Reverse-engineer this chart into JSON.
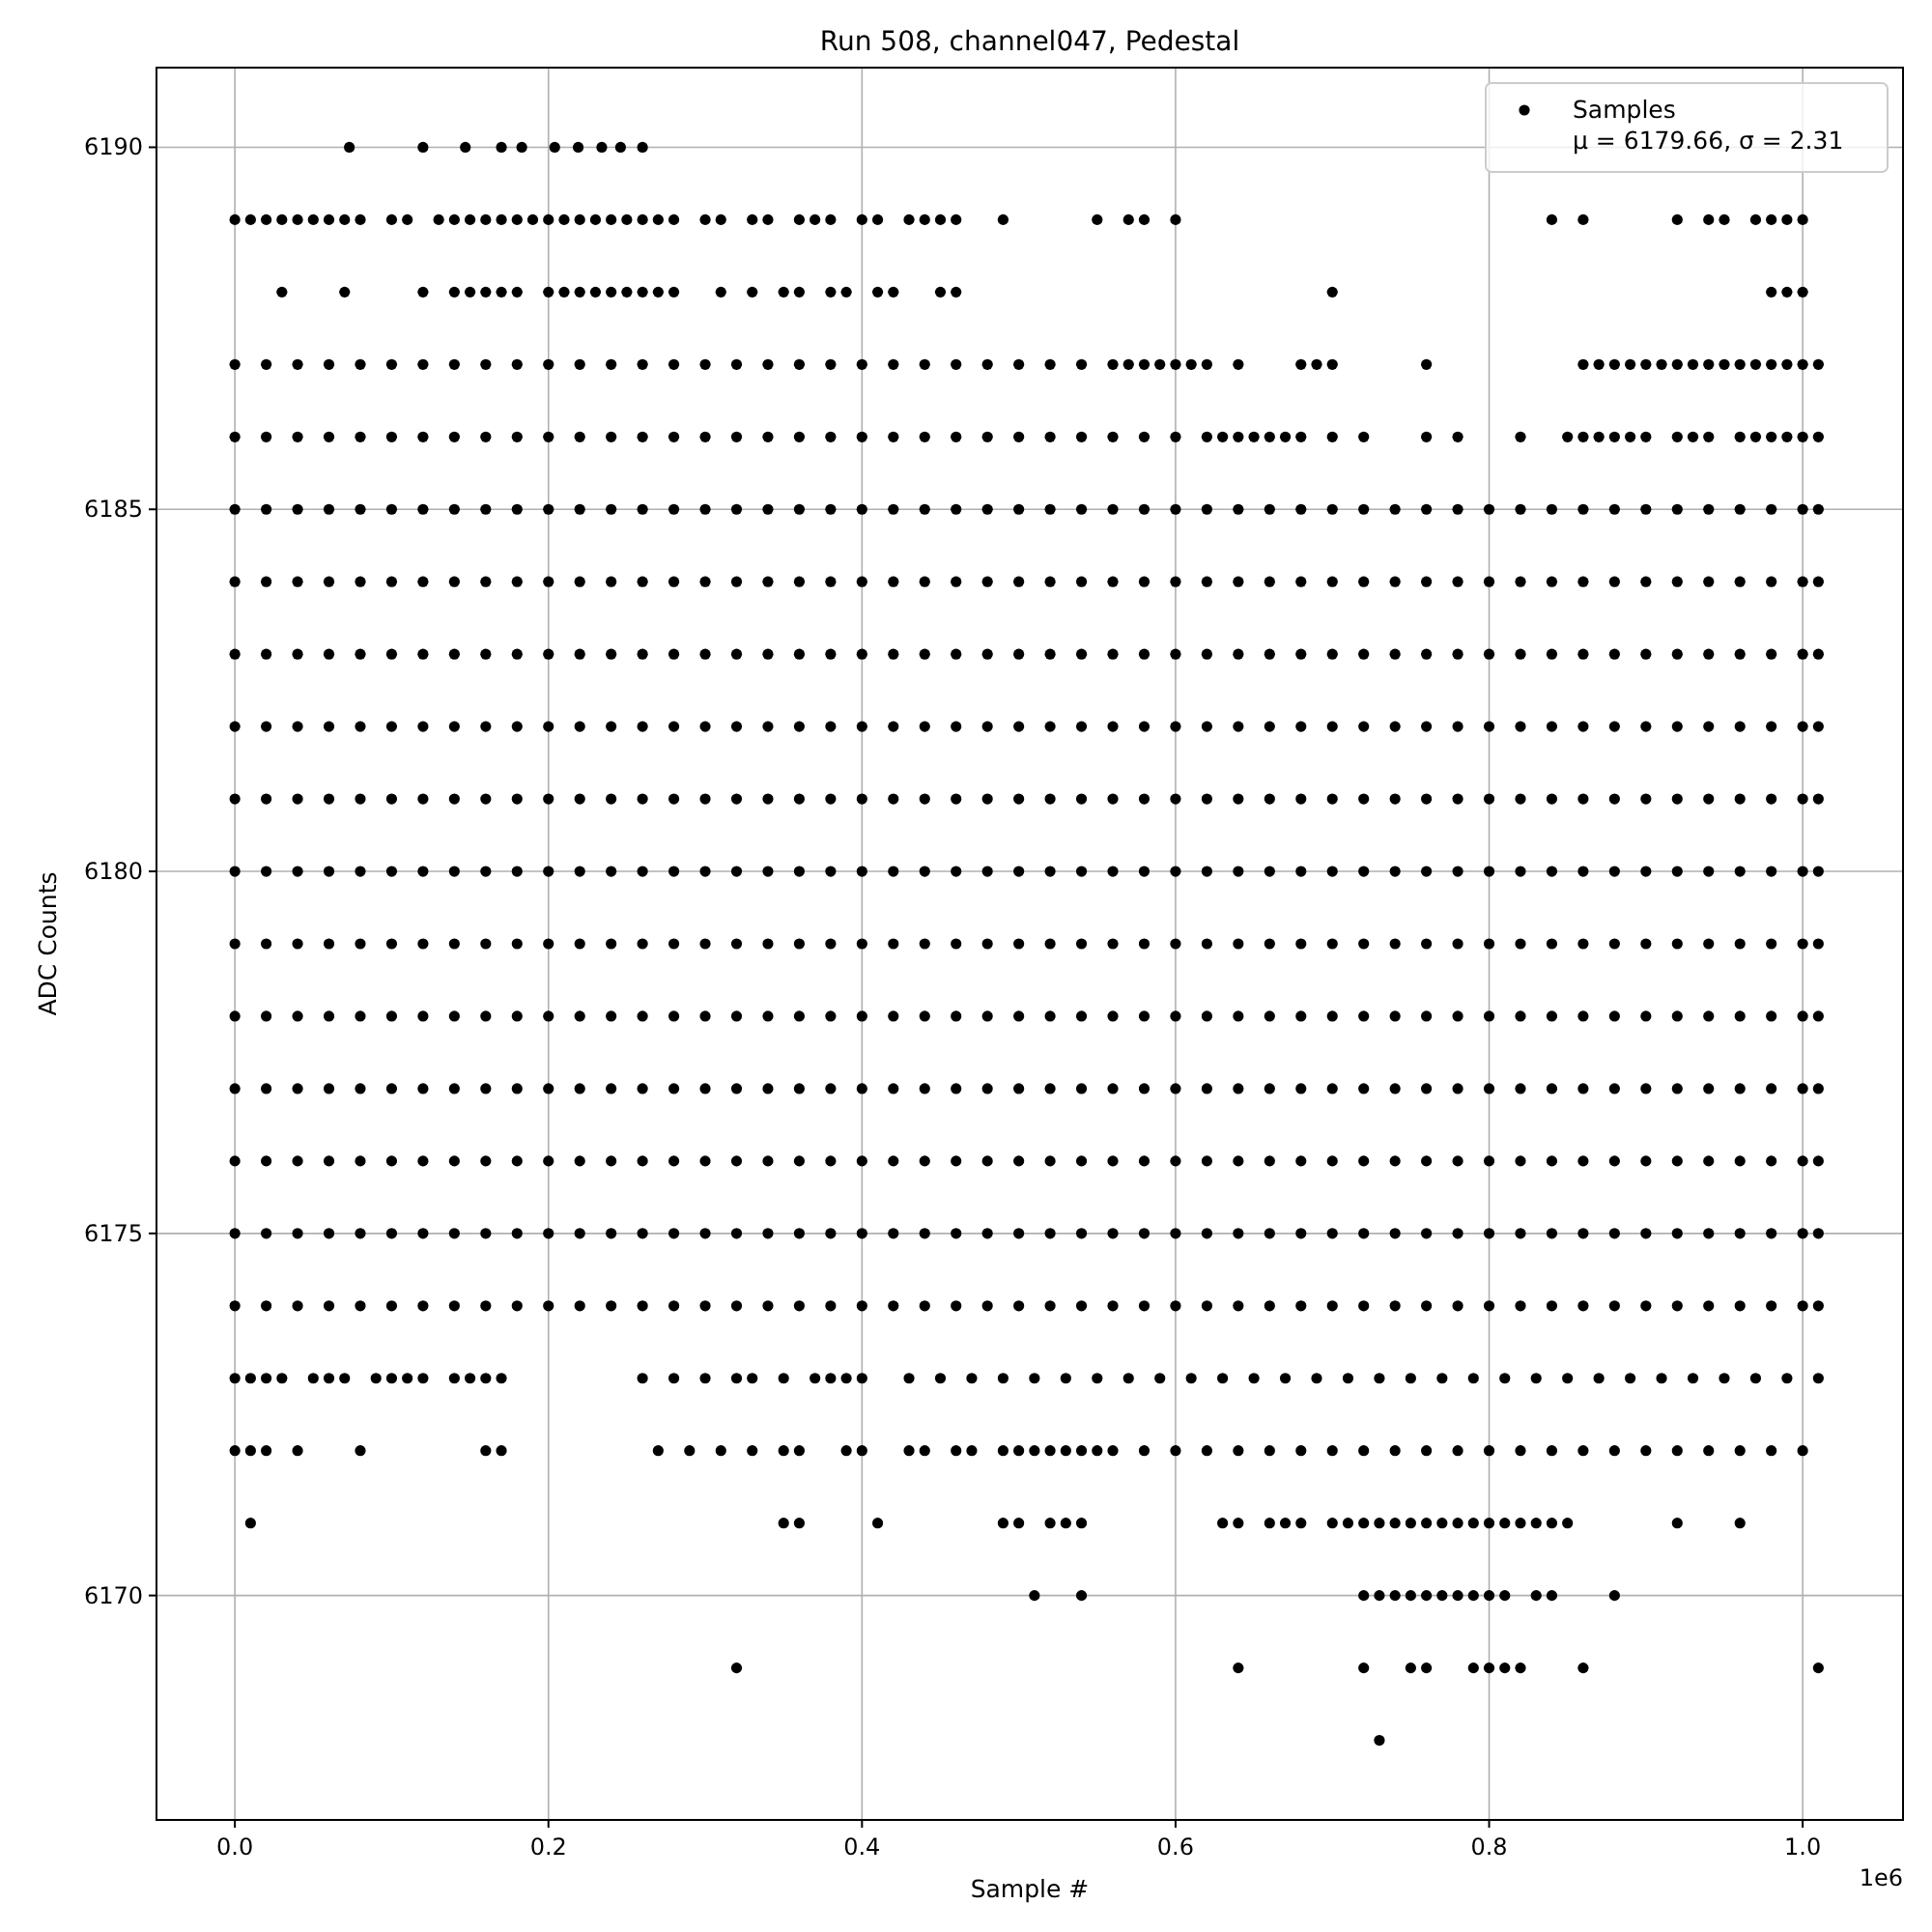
{
  "chart_data": {
    "type": "scatter",
    "title": "Run 508, channel047, Pedestal",
    "xlabel": "Sample #",
    "ylabel": "ADC Counts",
    "annotations": [
      "1e6"
    ],
    "xlim": [
      -0.05,
      1.064
    ],
    "ylim": [
      6166.9,
      6191.1
    ],
    "xticks": [
      {
        "value": 0,
        "label": "0.0"
      },
      {
        "value": 0.2,
        "label": "0.2"
      },
      {
        "value": 0.4,
        "label": "0.4"
      },
      {
        "value": 0.6,
        "label": "0.6"
      },
      {
        "value": 0.8,
        "label": "0.8"
      },
      {
        "value": 1,
        "label": "1.0"
      }
    ],
    "yticks": [
      6170,
      6175,
      6180,
      6185,
      6190
    ],
    "grid": true,
    "legend": "top right",
    "marker": "circle",
    "x": [
      0,
      0.02,
      0.04,
      0.06,
      0.08,
      0.1,
      0.12,
      0.14,
      0.16,
      0.18,
      0.2,
      0.22,
      0.24,
      0.26,
      0.28,
      0.3,
      0.32,
      0.34,
      0.36,
      0.38,
      0.4,
      0.42,
      0.44,
      0.46,
      0.48,
      0.5,
      0.52,
      0.54,
      0.56,
      0.58,
      0.6,
      0.62,
      0.64,
      0.66,
      0.68,
      0.7,
      0.72,
      0.74,
      0.76,
      0.78,
      0.8,
      0.82,
      0.84,
      0.86,
      0.88,
      0.9,
      0.92,
      0.94,
      0.96,
      0.98,
      1.0,
      1.01
    ],
    "series": [
      {
        "name": "Samples\nμ = 6179.66, σ = 2.31",
        "color": "#000000",
        "values": [
          6185,
          6185,
          6185,
          6185,
          6185,
          6185,
          6185,
          6185,
          6185,
          6185,
          6185,
          6185,
          6185,
          6185,
          6185,
          6185,
          6185,
          6185,
          6185,
          6185,
          6185,
          6185,
          6185,
          6185,
          6185,
          6185,
          6185,
          6185,
          6185,
          6185,
          6185,
          6185,
          6185,
          6185,
          6185,
          6185,
          6185,
          6185,
          6185,
          6185,
          6185,
          6185,
          6185,
          6185,
          6185,
          6185,
          6185,
          6185,
          6185,
          6185,
          6185,
          6185
        ]
      },
      {
        "color": "#000000",
        "values": [
          6184,
          6184,
          6184,
          6184,
          6184,
          6184,
          6184,
          6184,
          6184,
          6184,
          6184,
          6184,
          6184,
          6184,
          6184,
          6184,
          6184,
          6184,
          6184,
          6184,
          6184,
          6184,
          6184,
          6184,
          6184,
          6184,
          6184,
          6184,
          6184,
          6184,
          6184,
          6184,
          6184,
          6184,
          6184,
          6184,
          6184,
          6184,
          6184,
          6184,
          6184,
          6184,
          6184,
          6184,
          6184,
          6184,
          6184,
          6184,
          6184,
          6184,
          6184,
          6184
        ]
      },
      {
        "color": "#000000",
        "values": [
          6183,
          6183,
          6183,
          6183,
          6183,
          6183,
          6183,
          6183,
          6183,
          6183,
          6183,
          6183,
          6183,
          6183,
          6183,
          6183,
          6183,
          6183,
          6183,
          6183,
          6183,
          6183,
          6183,
          6183,
          6183,
          6183,
          6183,
          6183,
          6183,
          6183,
          6183,
          6183,
          6183,
          6183,
          6183,
          6183,
          6183,
          6183,
          6183,
          6183,
          6183,
          6183,
          6183,
          6183,
          6183,
          6183,
          6183,
          6183,
          6183,
          6183,
          6183,
          6183
        ]
      },
      {
        "color": "#000000",
        "values": [
          6182,
          6182,
          6182,
          6182,
          6182,
          6182,
          6182,
          6182,
          6182,
          6182,
          6182,
          6182,
          6182,
          6182,
          6182,
          6182,
          6182,
          6182,
          6182,
          6182,
          6182,
          6182,
          6182,
          6182,
          6182,
          6182,
          6182,
          6182,
          6182,
          6182,
          6182,
          6182,
          6182,
          6182,
          6182,
          6182,
          6182,
          6182,
          6182,
          6182,
          6182,
          6182,
          6182,
          6182,
          6182,
          6182,
          6182,
          6182,
          6182,
          6182,
          6182,
          6182
        ]
      },
      {
        "color": "#000000",
        "values": [
          6181,
          6181,
          6181,
          6181,
          6181,
          6181,
          6181,
          6181,
          6181,
          6181,
          6181,
          6181,
          6181,
          6181,
          6181,
          6181,
          6181,
          6181,
          6181,
          6181,
          6181,
          6181,
          6181,
          6181,
          6181,
          6181,
          6181,
          6181,
          6181,
          6181,
          6181,
          6181,
          6181,
          6181,
          6181,
          6181,
          6181,
          6181,
          6181,
          6181,
          6181,
          6181,
          6181,
          6181,
          6181,
          6181,
          6181,
          6181,
          6181,
          6181,
          6181,
          6181
        ]
      },
      {
        "color": "#000000",
        "values": [
          6180,
          6180,
          6180,
          6180,
          6180,
          6180,
          6180,
          6180,
          6180,
          6180,
          6180,
          6180,
          6180,
          6180,
          6180,
          6180,
          6180,
          6180,
          6180,
          6180,
          6180,
          6180,
          6180,
          6180,
          6180,
          6180,
          6180,
          6180,
          6180,
          6180,
          6180,
          6180,
          6180,
          6180,
          6180,
          6180,
          6180,
          6180,
          6180,
          6180,
          6180,
          6180,
          6180,
          6180,
          6180,
          6180,
          6180,
          6180,
          6180,
          6180,
          6180,
          6180
        ]
      },
      {
        "color": "#000000",
        "values": [
          6179,
          6179,
          6179,
          6179,
          6179,
          6179,
          6179,
          6179,
          6179,
          6179,
          6179,
          6179,
          6179,
          6179,
          6179,
          6179,
          6179,
          6179,
          6179,
          6179,
          6179,
          6179,
          6179,
          6179,
          6179,
          6179,
          6179,
          6179,
          6179,
          6179,
          6179,
          6179,
          6179,
          6179,
          6179,
          6179,
          6179,
          6179,
          6179,
          6179,
          6179,
          6179,
          6179,
          6179,
          6179,
          6179,
          6179,
          6179,
          6179,
          6179,
          6179,
          6179
        ]
      },
      {
        "color": "#000000",
        "values": [
          6178,
          6178,
          6178,
          6178,
          6178,
          6178,
          6178,
          6178,
          6178,
          6178,
          6178,
          6178,
          6178,
          6178,
          6178,
          6178,
          6178,
          6178,
          6178,
          6178,
          6178,
          6178,
          6178,
          6178,
          6178,
          6178,
          6178,
          6178,
          6178,
          6178,
          6178,
          6178,
          6178,
          6178,
          6178,
          6178,
          6178,
          6178,
          6178,
          6178,
          6178,
          6178,
          6178,
          6178,
          6178,
          6178,
          6178,
          6178,
          6178,
          6178,
          6178,
          6178
        ]
      },
      {
        "color": "#000000",
        "values": [
          6177,
          6177,
          6177,
          6177,
          6177,
          6177,
          6177,
          6177,
          6177,
          6177,
          6177,
          6177,
          6177,
          6177,
          6177,
          6177,
          6177,
          6177,
          6177,
          6177,
          6177,
          6177,
          6177,
          6177,
          6177,
          6177,
          6177,
          6177,
          6177,
          6177,
          6177,
          6177,
          6177,
          6177,
          6177,
          6177,
          6177,
          6177,
          6177,
          6177,
          6177,
          6177,
          6177,
          6177,
          6177,
          6177,
          6177,
          6177,
          6177,
          6177,
          6177,
          6177
        ]
      },
      {
        "color": "#000000",
        "values": [
          6176,
          6176,
          6176,
          6176,
          6176,
          6176,
          6176,
          6176,
          6176,
          6176,
          6176,
          6176,
          6176,
          6176,
          6176,
          6176,
          6176,
          6176,
          6176,
          6176,
          6176,
          6176,
          6176,
          6176,
          6176,
          6176,
          6176,
          6176,
          6176,
          6176,
          6176,
          6176,
          6176,
          6176,
          6176,
          6176,
          6176,
          6176,
          6176,
          6176,
          6176,
          6176,
          6176,
          6176,
          6176,
          6176,
          6176,
          6176,
          6176,
          6176,
          6176,
          6176
        ]
      },
      {
        "color": "#000000",
        "values": [
          6175,
          6175,
          6175,
          6175,
          6175,
          6175,
          6175,
          6175,
          6175,
          6175,
          6175,
          6175,
          6175,
          6175,
          6175,
          6175,
          6175,
          6175,
          6175,
          6175,
          6175,
          6175,
          6175,
          6175,
          6175,
          6175,
          6175,
          6175,
          6175,
          6175,
          6175,
          6175,
          6175,
          6175,
          6175,
          6175,
          6175,
          6175,
          6175,
          6175,
          6175,
          6175,
          6175,
          6175,
          6175,
          6175,
          6175,
          6175,
          6175,
          6175,
          6175,
          6175
        ]
      },
      {
        "color": "#000000",
        "values": [
          6174,
          6174,
          6174,
          6174,
          6174,
          6174,
          6174,
          6174,
          6174,
          6174,
          6174,
          6174,
          6174,
          6174,
          6174,
          6174,
          6174,
          6174,
          6174,
          6174,
          6174,
          6174,
          6174,
          6174,
          6174,
          6174,
          6174,
          6174,
          6174,
          6174,
          6174,
          6174,
          6174,
          6174,
          6174,
          6174,
          6174,
          6174,
          6174,
          6174,
          6174,
          6174,
          6174,
          6174,
          6174,
          6174,
          6174,
          6174,
          6174,
          6174,
          6174,
          6174
        ]
      },
      {
        "color": "#000000",
        "x": [
          0.073,
          0.12,
          0.147,
          0.17,
          0.183,
          0.204,
          0.219,
          0.234,
          0.246,
          0.26
        ],
        "values": [
          6190,
          6190,
          6190,
          6190,
          6190,
          6190,
          6190,
          6190,
          6190,
          6190
        ]
      },
      {
        "color": "#000000",
        "x": [
          0.0,
          0.01,
          0.02,
          0.03,
          0.04,
          0.05,
          0.06,
          0.07,
          0.08,
          0.1,
          0.11,
          0.13,
          0.14,
          0.15,
          0.16,
          0.17,
          0.18,
          0.19,
          0.2,
          0.21,
          0.22,
          0.23,
          0.24,
          0.25,
          0.26,
          0.27,
          0.28,
          0.3,
          0.31,
          0.33,
          0.34,
          0.36,
          0.37,
          0.38,
          0.4,
          0.41,
          0.43,
          0.44,
          0.45,
          0.46,
          0.49,
          0.55,
          0.57,
          0.58,
          0.6,
          0.84,
          0.86,
          0.92,
          0.94,
          0.95,
          0.97,
          0.98,
          0.99,
          1.0
        ],
        "values": [
          6189,
          6189,
          6189,
          6189,
          6189,
          6189,
          6189,
          6189,
          6189,
          6189,
          6189,
          6189,
          6189,
          6189,
          6189,
          6189,
          6189,
          6189,
          6189,
          6189,
          6189,
          6189,
          6189,
          6189,
          6189,
          6189,
          6189,
          6189,
          6189,
          6189,
          6189,
          6189,
          6189,
          6189,
          6189,
          6189,
          6189,
          6189,
          6189,
          6189,
          6189,
          6189,
          6189,
          6189,
          6189,
          6189,
          6189,
          6189,
          6189,
          6189,
          6189,
          6189,
          6189,
          6189
        ]
      },
      {
        "color": "#000000",
        "x": [
          0.03,
          0.07,
          0.12,
          0.14,
          0.15,
          0.16,
          0.17,
          0.18,
          0.2,
          0.21,
          0.22,
          0.23,
          0.24,
          0.25,
          0.26,
          0.27,
          0.28,
          0.31,
          0.33,
          0.35,
          0.36,
          0.38,
          0.39,
          0.41,
          0.42,
          0.45,
          0.46,
          0.7,
          0.98,
          0.99,
          1.0
        ],
        "values": [
          6188,
          6188,
          6188,
          6188,
          6188,
          6188,
          6188,
          6188,
          6188,
          6188,
          6188,
          6188,
          6188,
          6188,
          6188,
          6188,
          6188,
          6188,
          6188,
          6188,
          6188,
          6188,
          6188,
          6188,
          6188,
          6188,
          6188,
          6188,
          6188,
          6188,
          6188
        ]
      },
      {
        "color": "#000000",
        "x": [
          0,
          0.02,
          0.04,
          0.06,
          0.08,
          0.1,
          0.12,
          0.14,
          0.16,
          0.18,
          0.2,
          0.22,
          0.24,
          0.26,
          0.28,
          0.3,
          0.32,
          0.34,
          0.36,
          0.38,
          0.4,
          0.42,
          0.44,
          0.46,
          0.48,
          0.5,
          0.52,
          0.54,
          0.56,
          0.57,
          0.58,
          0.59,
          0.6,
          0.61,
          0.62,
          0.64,
          0.68,
          0.69,
          0.7,
          0.76,
          0.86,
          0.87,
          0.88,
          0.89,
          0.9,
          0.91,
          0.92,
          0.93,
          0.94,
          0.95,
          0.96,
          0.97,
          0.98,
          0.99,
          1.0,
          1.01
        ],
        "values": [
          6187,
          6187,
          6187,
          6187,
          6187,
          6187,
          6187,
          6187,
          6187,
          6187,
          6187,
          6187,
          6187,
          6187,
          6187,
          6187,
          6187,
          6187,
          6187,
          6187,
          6187,
          6187,
          6187,
          6187,
          6187,
          6187,
          6187,
          6187,
          6187,
          6187,
          6187,
          6187,
          6187,
          6187,
          6187,
          6187,
          6187,
          6187,
          6187,
          6187,
          6187,
          6187,
          6187,
          6187,
          6187,
          6187,
          6187,
          6187,
          6187,
          6187,
          6187,
          6187,
          6187,
          6187,
          6187,
          6187
        ]
      },
      {
        "color": "#000000",
        "x": [
          0,
          0.02,
          0.04,
          0.06,
          0.08,
          0.1,
          0.12,
          0.14,
          0.16,
          0.18,
          0.2,
          0.22,
          0.24,
          0.26,
          0.28,
          0.3,
          0.32,
          0.34,
          0.36,
          0.38,
          0.4,
          0.42,
          0.44,
          0.46,
          0.48,
          0.5,
          0.52,
          0.54,
          0.56,
          0.58,
          0.6,
          0.62,
          0.63,
          0.64,
          0.65,
          0.66,
          0.67,
          0.68,
          0.7,
          0.72,
          0.76,
          0.78,
          0.82,
          0.85,
          0.86,
          0.87,
          0.88,
          0.89,
          0.9,
          0.92,
          0.93,
          0.94,
          0.96,
          0.97,
          0.98,
          0.99,
          1.0,
          1.01
        ],
        "values": [
          6186,
          6186,
          6186,
          6186,
          6186,
          6186,
          6186,
          6186,
          6186,
          6186,
          6186,
          6186,
          6186,
          6186,
          6186,
          6186,
          6186,
          6186,
          6186,
          6186,
          6186,
          6186,
          6186,
          6186,
          6186,
          6186,
          6186,
          6186,
          6186,
          6186,
          6186,
          6186,
          6186,
          6186,
          6186,
          6186,
          6186,
          6186,
          6186,
          6186,
          6186,
          6186,
          6186,
          6186,
          6186,
          6186,
          6186,
          6186,
          6186,
          6186,
          6186,
          6186,
          6186,
          6186,
          6186,
          6186,
          6186,
          6186
        ]
      },
      {
        "color": "#000000",
        "x": [
          0.0,
          0.01,
          0.02,
          0.03,
          0.05,
          0.06,
          0.07,
          0.09,
          0.1,
          0.11,
          0.12,
          0.14,
          0.15,
          0.16,
          0.17,
          0.26,
          0.28,
          0.3,
          0.32,
          0.33,
          0.35,
          0.37,
          0.38,
          0.39,
          0.4,
          0.43,
          0.45,
          0.47,
          0.49,
          0.51,
          0.53,
          0.55,
          0.57,
          0.59,
          0.61,
          0.63,
          0.65,
          0.67,
          0.69,
          0.71,
          0.73,
          0.75,
          0.77,
          0.79,
          0.81,
          0.83,
          0.85,
          0.87,
          0.89,
          0.91,
          0.93,
          0.95,
          0.97,
          0.99,
          1.01
        ],
        "values": [
          6173,
          6173,
          6173,
          6173,
          6173,
          6173,
          6173,
          6173,
          6173,
          6173,
          6173,
          6173,
          6173,
          6173,
          6173,
          6173,
          6173,
          6173,
          6173,
          6173,
          6173,
          6173,
          6173,
          6173,
          6173,
          6173,
          6173,
          6173,
          6173,
          6173,
          6173,
          6173,
          6173,
          6173,
          6173,
          6173,
          6173,
          6173,
          6173,
          6173,
          6173,
          6173,
          6173,
          6173,
          6173,
          6173,
          6173,
          6173,
          6173,
          6173,
          6173,
          6173,
          6173,
          6173,
          6173
        ]
      },
      {
        "color": "#000000",
        "x": [
          0.0,
          0.01,
          0.02,
          0.04,
          0.08,
          0.16,
          0.17,
          0.27,
          0.29,
          0.31,
          0.33,
          0.35,
          0.36,
          0.39,
          0.4,
          0.43,
          0.44,
          0.46,
          0.47,
          0.49,
          0.5,
          0.51,
          0.52,
          0.53,
          0.54,
          0.55,
          0.56,
          0.58,
          0.6,
          0.62,
          0.64,
          0.66,
          0.68,
          0.7,
          0.72,
          0.74,
          0.76,
          0.78,
          0.8,
          0.82,
          0.84,
          0.86,
          0.88,
          0.9,
          0.92,
          0.94,
          0.96,
          0.98,
          1.0
        ],
        "values": [
          6172,
          6172,
          6172,
          6172,
          6172,
          6172,
          6172,
          6172,
          6172,
          6172,
          6172,
          6172,
          6172,
          6172,
          6172,
          6172,
          6172,
          6172,
          6172,
          6172,
          6172,
          6172,
          6172,
          6172,
          6172,
          6172,
          6172,
          6172,
          6172,
          6172,
          6172,
          6172,
          6172,
          6172,
          6172,
          6172,
          6172,
          6172,
          6172,
          6172,
          6172,
          6172,
          6172,
          6172,
          6172,
          6172,
          6172,
          6172,
          6172
        ]
      },
      {
        "color": "#000000",
        "x": [
          0.01,
          0.35,
          0.36,
          0.41,
          0.49,
          0.5,
          0.52,
          0.53,
          0.54,
          0.63,
          0.64,
          0.66,
          0.67,
          0.68,
          0.7,
          0.71,
          0.72,
          0.73,
          0.74,
          0.75,
          0.76,
          0.77,
          0.78,
          0.79,
          0.8,
          0.81,
          0.82,
          0.83,
          0.84,
          0.85,
          0.92,
          0.96
        ],
        "values": [
          6171,
          6171,
          6171,
          6171,
          6171,
          6171,
          6171,
          6171,
          6171,
          6171,
          6171,
          6171,
          6171,
          6171,
          6171,
          6171,
          6171,
          6171,
          6171,
          6171,
          6171,
          6171,
          6171,
          6171,
          6171,
          6171,
          6171,
          6171,
          6171,
          6171,
          6171,
          6171
        ]
      },
      {
        "color": "#000000",
        "x": [
          0.51,
          0.54,
          0.72,
          0.73,
          0.74,
          0.75,
          0.76,
          0.77,
          0.78,
          0.79,
          0.8,
          0.81,
          0.83,
          0.84,
          0.88
        ],
        "values": [
          6170,
          6170,
          6170,
          6170,
          6170,
          6170,
          6170,
          6170,
          6170,
          6170,
          6170,
          6170,
          6170,
          6170,
          6170
        ]
      },
      {
        "color": "#000000",
        "x": [
          0.32,
          0.64,
          0.72,
          0.75,
          0.76,
          0.79,
          0.8,
          0.81,
          0.82,
          0.86,
          1.01
        ],
        "values": [
          6169,
          6169,
          6169,
          6169,
          6169,
          6169,
          6169,
          6169,
          6169,
          6169,
          6169
        ]
      },
      {
        "color": "#000000",
        "x": [
          0.73
        ],
        "values": [
          6168
        ]
      }
    ]
  }
}
